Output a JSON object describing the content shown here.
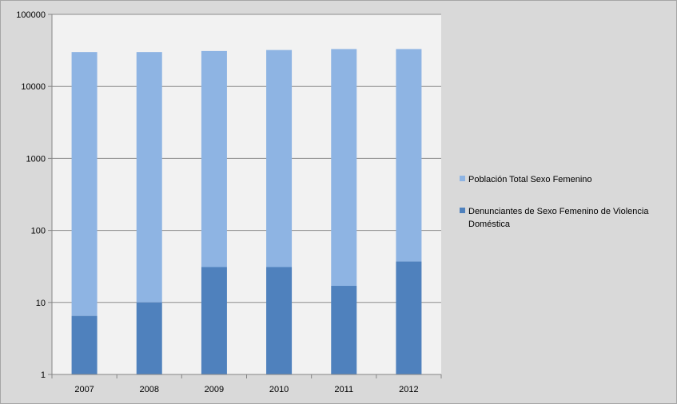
{
  "chart_data": {
    "type": "bar",
    "stacked": true,
    "y_scale": "log",
    "ylim": [
      1,
      100000
    ],
    "y_ticks": [
      "1",
      "10",
      "100",
      "1000",
      "10000",
      "100000"
    ],
    "categories": [
      "2007",
      "2008",
      "2009",
      "2010",
      "2011",
      "2012"
    ],
    "series": [
      {
        "name": "Población Total Sexo Femenino",
        "color": "#8eb4e3",
        "values": [
          30000,
          30000,
          31000,
          32000,
          33000,
          33000
        ]
      },
      {
        "name": "Denunciantes de Sexo Femenino de Violencia Doméstica",
        "color": "#4f81bd",
        "values": [
          6.5,
          10,
          31,
          31,
          17,
          37
        ]
      }
    ],
    "legend_position": "right",
    "grid": true,
    "plot_background": "#f2f2f2"
  }
}
